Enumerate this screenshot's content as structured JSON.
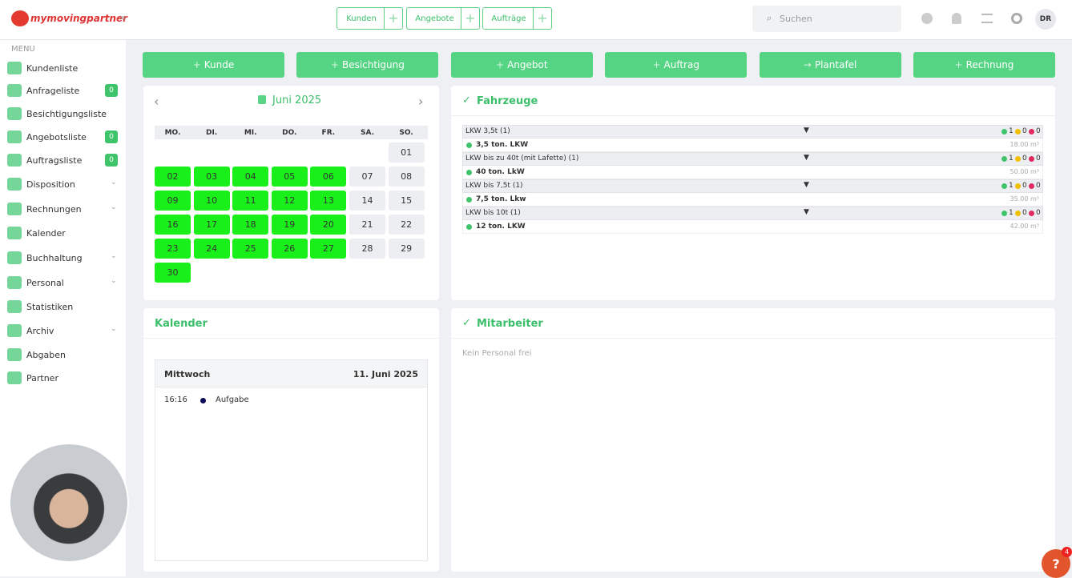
{
  "logo": "mymovingpartner",
  "topnav": [
    {
      "label": "Kunden"
    },
    {
      "label": "Angebote"
    },
    {
      "label": "Aufträge"
    }
  ],
  "search_placeholder": "Suchen",
  "avatar": "DR",
  "menu_title": "MENU",
  "menu": [
    {
      "label": "Kundenliste"
    },
    {
      "label": "Anfrageliste",
      "badge": 0
    },
    {
      "label": "Besichtigungsliste"
    },
    {
      "label": "Angebotsliste",
      "badge": 0
    },
    {
      "label": "Auftragsliste",
      "badge": 0
    },
    {
      "label": "Disposition",
      "dropdown": true
    },
    {
      "label": "Rechnungen",
      "dropdown": true
    },
    {
      "label": "Kalender"
    },
    {
      "label": "Buchhaltung",
      "dropdown": true
    },
    {
      "label": "Personal",
      "dropdown": true
    },
    {
      "label": "Statistiken"
    },
    {
      "label": "Archiv",
      "dropdown": true
    },
    {
      "label": "Abgaben"
    },
    {
      "label": "Partner"
    }
  ],
  "actions": [
    {
      "label": "Kunde",
      "icon": "plus"
    },
    {
      "label": "Besichtigung",
      "icon": "plus"
    },
    {
      "label": "Angebot",
      "icon": "plus"
    },
    {
      "label": "Auftrag",
      "icon": "plus"
    },
    {
      "label": "Plantafel",
      "icon": "arrow"
    },
    {
      "label": "Rechnung",
      "icon": "plus"
    }
  ],
  "calendar": {
    "month": "Juni 2025",
    "weekdays": [
      "MO.",
      "DI.",
      "MI.",
      "DO.",
      "FR.",
      "SA.",
      "SO."
    ],
    "days": [
      "01",
      "02",
      "03",
      "04",
      "05",
      "06",
      "07",
      "08",
      "09",
      "10",
      "11",
      "12",
      "13",
      "14",
      "15",
      "16",
      "17",
      "18",
      "19",
      "20",
      "21",
      "22",
      "23",
      "24",
      "25",
      "26",
      "27",
      "28",
      "29",
      "30"
    ]
  },
  "vehicles": {
    "title": "Fahrzeuge",
    "status_colors": [
      "#3fc46c",
      "#f0c000",
      "#e22a61"
    ],
    "groups": [
      {
        "name": "LKW 3,5t (1)",
        "counts": [
          1,
          0,
          0
        ],
        "items": [
          {
            "name": "3,5 ton. LKW",
            "volume": "18.00 m³"
          }
        ]
      },
      {
        "name": "LKW bis zu 40t (mit Lafette) (1)",
        "counts": [
          1,
          0,
          0
        ],
        "items": [
          {
            "name": "40 ton. LkW",
            "volume": "50.00 m³"
          }
        ]
      },
      {
        "name": "LKW bis 7,5t (1)",
        "counts": [
          1,
          0,
          0
        ],
        "items": [
          {
            "name": "7,5 ton. Lkw",
            "volume": "35.00 m³"
          }
        ]
      },
      {
        "name": "LKW bis 10t (1)",
        "counts": [
          1,
          0,
          0
        ],
        "items": [
          {
            "name": "12 ton. LKW",
            "volume": "42.00 m³"
          }
        ]
      }
    ]
  },
  "agenda": {
    "title": "Kalender",
    "weekday": "Mittwoch",
    "date": "11. Juni 2025",
    "events": [
      {
        "time": "16:16",
        "label": "Aufgabe"
      }
    ]
  },
  "staff": {
    "title": "Mitarbeiter",
    "empty": "Kein Personal frei"
  },
  "help": {
    "label": "?",
    "badge": 4
  }
}
